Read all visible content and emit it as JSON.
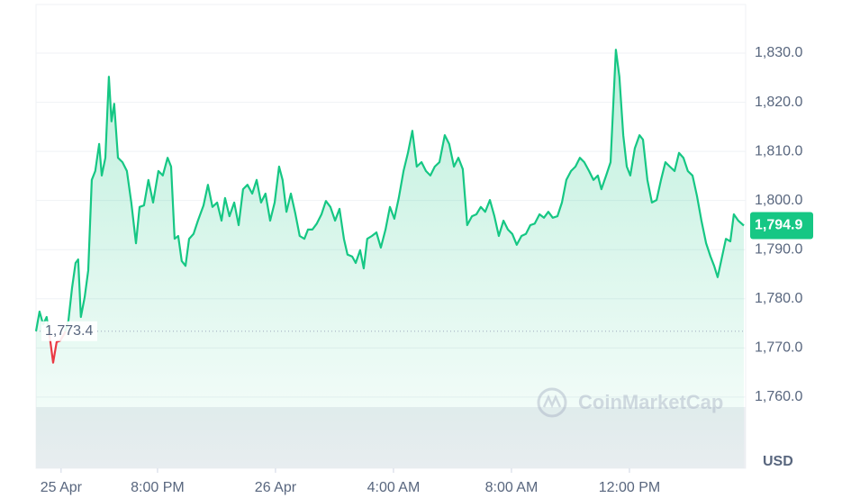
{
  "chart_data": {
    "type": "line",
    "currency": "USD",
    "watermark": "CoinMarketCap",
    "color": "#16c784",
    "below_color": "#ea3943",
    "grid": true,
    "xlim": [
      -8.12,
      15.94
    ],
    "ylim": [
      1745.5,
      1839.9
    ],
    "yticks": [
      {
        "value": 1760,
        "label": "1,760.0"
      },
      {
        "value": 1770,
        "label": "1,770.0"
      },
      {
        "value": 1780,
        "label": "1,780.0"
      },
      {
        "value": 1790,
        "label": "1,790.0"
      },
      {
        "value": 1800,
        "label": "1,800.0"
      },
      {
        "value": 1810,
        "label": "1,810.0"
      },
      {
        "value": 1820,
        "label": "1,820.0"
      },
      {
        "value": 1830,
        "label": "1,830.0"
      }
    ],
    "xticks": [
      {
        "value": -7.27,
        "label": "25 Apr"
      },
      {
        "value": -4,
        "label": "8:00 PM"
      },
      {
        "value": 0,
        "label": "26 Apr"
      },
      {
        "value": 4,
        "label": "4:00 AM"
      },
      {
        "value": 8,
        "label": "8:00 AM"
      },
      {
        "value": 12,
        "label": "12:00 PM"
      }
    ],
    "reference": {
      "value": 1773.4,
      "label": "1,773.4"
    },
    "current": {
      "value": 1794.9,
      "label": "1,794.9"
    },
    "x": [
      -8.12,
      -8.0,
      -7.88,
      -7.76,
      -7.63,
      -7.54,
      -7.42,
      -7.3,
      -7.15,
      -7.02,
      -6.9,
      -6.78,
      -6.69,
      -6.6,
      -6.47,
      -6.35,
      -6.23,
      -6.11,
      -5.98,
      -5.89,
      -5.77,
      -5.65,
      -5.56,
      -5.47,
      -5.34,
      -5.19,
      -5.04,
      -4.89,
      -4.73,
      -4.61,
      -4.46,
      -4.31,
      -4.15,
      -3.97,
      -3.82,
      -3.66,
      -3.54,
      -3.42,
      -3.3,
      -3.18,
      -3.05,
      -2.93,
      -2.78,
      -2.63,
      -2.44,
      -2.29,
      -2.14,
      -1.98,
      -1.83,
      -1.71,
      -1.56,
      -1.4,
      -1.25,
      -1.1,
      -0.95,
      -0.79,
      -0.64,
      -0.49,
      -0.34,
      -0.18,
      -0.03,
      0.12,
      0.24,
      0.37,
      0.52,
      0.67,
      0.82,
      0.98,
      1.1,
      1.25,
      1.4,
      1.56,
      1.71,
      1.86,
      2.02,
      2.17,
      2.32,
      2.44,
      2.6,
      2.72,
      2.87,
      2.99,
      3.11,
      3.27,
      3.42,
      3.57,
      3.73,
      3.88,
      4.03,
      4.18,
      4.34,
      4.49,
      4.64,
      4.79,
      4.95,
      5.1,
      5.25,
      5.4,
      5.56,
      5.74,
      5.89,
      6.05,
      6.2,
      6.35,
      6.5,
      6.66,
      6.81,
      6.96,
      7.11,
      7.27,
      7.42,
      7.57,
      7.73,
      7.88,
      8.03,
      8.18,
      8.34,
      8.49,
      8.64,
      8.79,
      8.95,
      9.1,
      9.25,
      9.4,
      9.56,
      9.71,
      9.86,
      10.02,
      10.17,
      10.32,
      10.47,
      10.63,
      10.78,
      10.93,
      11.05,
      11.21,
      11.36,
      11.54,
      11.66,
      11.79,
      11.91,
      12.03,
      12.18,
      12.34,
      12.46,
      12.61,
      12.76,
      12.92,
      13.07,
      13.22,
      13.37,
      13.53,
      13.68,
      13.83,
      13.98,
      14.14,
      14.29,
      14.44,
      14.6,
      14.75,
      14.87,
      14.99,
      15.11,
      15.27,
      15.42,
      15.54,
      15.69,
      15.88
    ],
    "values": [
      1773.4,
      1777.4,
      1774.8,
      1776.3,
      1771.2,
      1767.0,
      1771.2,
      1771.5,
      1773.0,
      1775.6,
      1782.2,
      1787.3,
      1788.0,
      1776.3,
      1780.3,
      1785.8,
      1804.2,
      1806.0,
      1811.5,
      1805.1,
      1808.7,
      1825.2,
      1816.1,
      1819.7,
      1808.7,
      1807.8,
      1806.0,
      1799.6,
      1791.3,
      1798.7,
      1799.0,
      1804.2,
      1799.6,
      1806.0,
      1805.1,
      1808.7,
      1806.9,
      1792.2,
      1792.8,
      1787.7,
      1786.7,
      1792.2,
      1793.2,
      1795.9,
      1799.0,
      1803.2,
      1798.7,
      1799.6,
      1795.9,
      1800.5,
      1796.8,
      1799.6,
      1795.0,
      1802.3,
      1803.2,
      1801.4,
      1804.2,
      1799.6,
      1801.4,
      1795.9,
      1799.6,
      1806.9,
      1804.2,
      1797.7,
      1801.4,
      1797.4,
      1792.8,
      1792.2,
      1794.1,
      1794.1,
      1795.3,
      1797.2,
      1799.9,
      1798.7,
      1795.9,
      1798.3,
      1792.2,
      1789.0,
      1788.6,
      1787.3,
      1789.9,
      1786.2,
      1792.2,
      1792.8,
      1793.5,
      1790.4,
      1794.1,
      1798.7,
      1796.3,
      1800.5,
      1806.0,
      1809.7,
      1814.2,
      1806.9,
      1807.8,
      1806.0,
      1805.1,
      1806.9,
      1807.8,
      1813.3,
      1811.5,
      1806.9,
      1808.7,
      1806.4,
      1795.0,
      1796.8,
      1797.2,
      1798.7,
      1797.7,
      1800.1,
      1796.8,
      1792.8,
      1795.9,
      1794.1,
      1793.2,
      1791.0,
      1792.8,
      1793.2,
      1795.0,
      1795.3,
      1797.2,
      1796.5,
      1797.7,
      1796.5,
      1796.8,
      1799.6,
      1804.2,
      1806.0,
      1806.9,
      1808.7,
      1807.8,
      1806.0,
      1804.2,
      1805.1,
      1802.3,
      1805.1,
      1807.8,
      1830.7,
      1825.2,
      1813.3,
      1806.9,
      1805.1,
      1810.6,
      1813.3,
      1812.4,
      1804.2,
      1799.6,
      1800.1,
      1804.2,
      1807.8,
      1806.9,
      1806.0,
      1809.7,
      1808.7,
      1806.0,
      1805.1,
      1800.9,
      1795.9,
      1791.3,
      1788.6,
      1786.7,
      1784.4,
      1787.7,
      1792.2,
      1791.7,
      1797.2,
      1795.9,
      1794.9
    ]
  }
}
